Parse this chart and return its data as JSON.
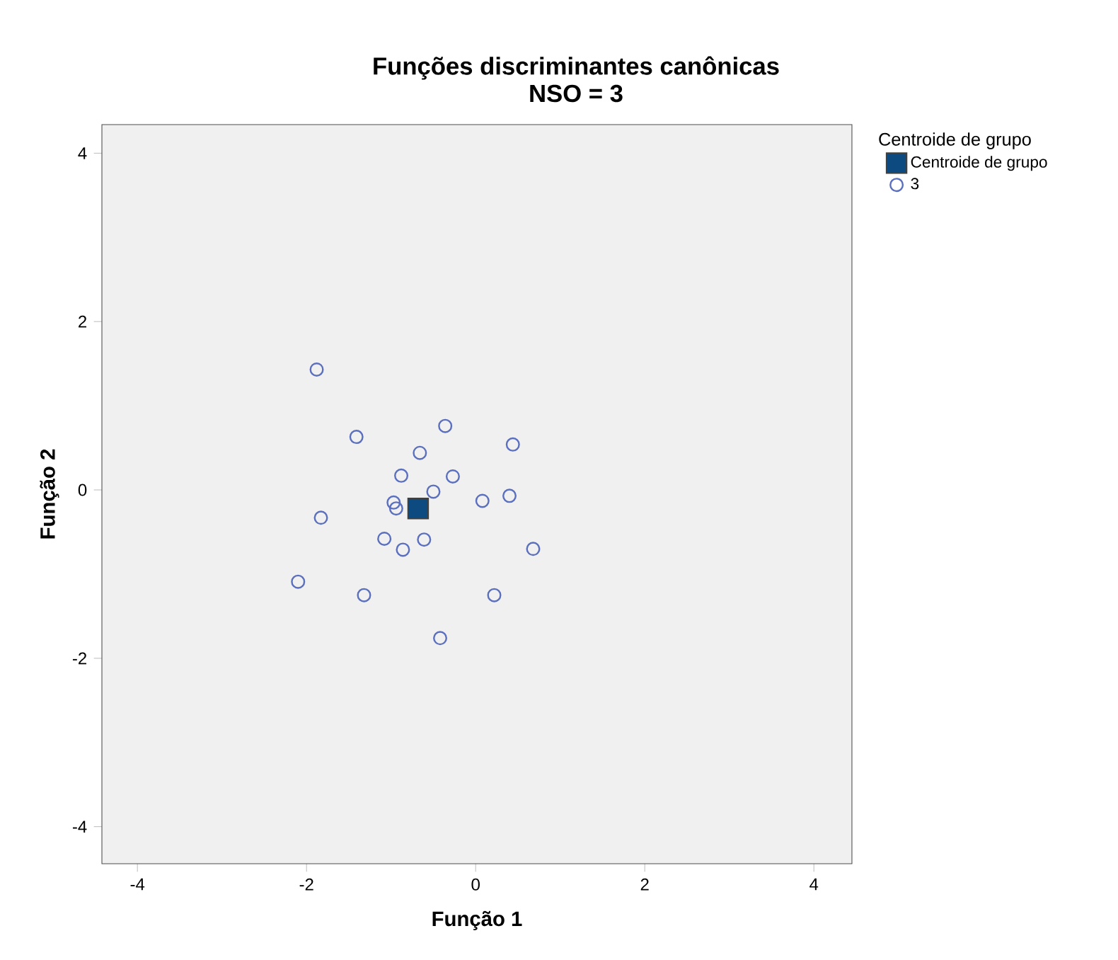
{
  "chart_data": {
    "type": "scatter",
    "title": "Funções discriminantes canônicas",
    "subtitle": "NSO = 3",
    "xlabel": "Função 1",
    "ylabel": "Função 2",
    "legend_title": "Centroide de grupo",
    "xlim": [
      -4.42,
      4.45
    ],
    "ylim": [
      -4.44,
      4.34
    ],
    "xticks": [
      -4,
      -2,
      0,
      2,
      4
    ],
    "yticks": [
      -4,
      -2,
      0,
      2,
      4
    ],
    "grid": false,
    "legend": "top right",
    "series": [
      {
        "name": "Centroide de grupo",
        "color": "#0d4a80",
        "marker": "square",
        "x": [
          -0.68
        ],
        "values": [
          -0.22
        ]
      },
      {
        "name": "3",
        "color": "#5b6fbf",
        "marker": "circle",
        "x": [
          -1.88,
          -1.41,
          -0.36,
          0.44,
          -0.66,
          -0.88,
          -0.27,
          -0.5,
          -0.97,
          -0.94,
          0.08,
          0.4,
          -1.83,
          -1.08,
          -0.61,
          -0.86,
          0.68,
          -2.1,
          -1.32,
          0.22,
          -0.42
        ],
        "values": [
          1.43,
          0.63,
          0.76,
          0.54,
          0.44,
          0.17,
          0.16,
          -0.02,
          -0.15,
          -0.22,
          -0.13,
          -0.07,
          -0.33,
          -0.58,
          -0.59,
          -0.71,
          -0.7,
          -1.09,
          -1.25,
          -1.25,
          -1.76
        ]
      }
    ]
  }
}
